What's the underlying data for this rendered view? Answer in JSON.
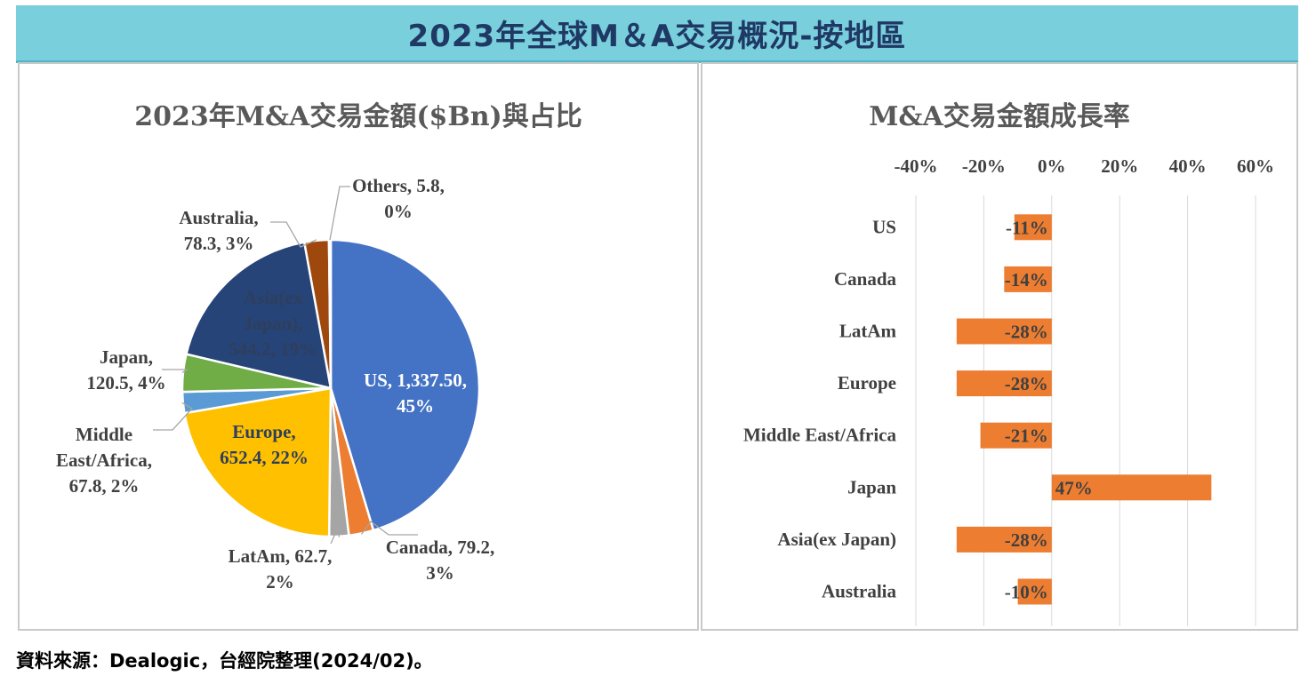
{
  "banner": {
    "title": "2023年全球M＆A交易概況-按地區"
  },
  "source": "資料來源：Dealogic，台經院整理(2024/02)。",
  "colors": {
    "us": "#4472c4",
    "canada": "#ed7d31",
    "latam": "#a5a5a5",
    "europe": "#ffc000",
    "middle_east_africa": "#5b9bd5",
    "japan": "#70ad47",
    "asia_ex_japan": "#264478",
    "australia": "#9e480e",
    "others": "#636363",
    "growth_bar": "#ed7d31"
  },
  "chart_data": [
    {
      "type": "pie",
      "title": "2023年M&A交易金額($Bn)與占比",
      "slices": [
        {
          "key": "us",
          "name": "US",
          "value": 1337.5,
          "value_text": "1,337.50",
          "pct": "45%"
        },
        {
          "key": "canada",
          "name": "Canada",
          "value": 79.2,
          "value_text": "79.2",
          "pct": "3%"
        },
        {
          "key": "latam",
          "name": "LatAm",
          "value": 62.7,
          "value_text": "62.7",
          "pct": "2%"
        },
        {
          "key": "europe",
          "name": "Europe",
          "value": 652.4,
          "value_text": "652.4",
          "pct": "22%"
        },
        {
          "key": "middle_east_africa",
          "name": "Middle East/Africa",
          "value": 67.8,
          "value_text": "67.8",
          "pct": "2%"
        },
        {
          "key": "japan",
          "name": "Japan",
          "value": 120.5,
          "value_text": "120.5",
          "pct": "4%"
        },
        {
          "key": "asia_ex_japan",
          "name": "Asia(ex Japan)",
          "value": 544.2,
          "value_text": "544.2",
          "pct": "19%"
        },
        {
          "key": "australia",
          "name": "Australia",
          "value": 78.3,
          "value_text": "78.3",
          "pct": "3%"
        },
        {
          "key": "others",
          "name": "Others",
          "value": 5.8,
          "value_text": "5.8",
          "pct": "0%"
        }
      ],
      "labels": {
        "us": [
          "US, 1,337.50,",
          "45%"
        ],
        "canada": [
          "Canada, 79.2,",
          "3%"
        ],
        "latam": [
          "LatAm, 62.7,",
          "2%"
        ],
        "europe": [
          "Europe,",
          "652.4, 22%"
        ],
        "middle_east_africa": [
          "Middle",
          "East/Africa,",
          "67.8, 2%"
        ],
        "japan": [
          "Japan,",
          "120.5, 4%"
        ],
        "asia_ex_japan": [
          "Asia(ex",
          "Japan),",
          "544.2, 19%"
        ],
        "australia": [
          "Australia,",
          "78.3, 3%"
        ],
        "others": [
          "Others, 5.8,",
          "0%"
        ]
      }
    },
    {
      "type": "bar",
      "orientation": "horizontal",
      "title": "M&A交易金額成長率",
      "categories": [
        "US",
        "Canada",
        "LatAm",
        "Europe",
        "Middle East/Africa",
        "Japan",
        "Asia(ex Japan)",
        "Australia"
      ],
      "values": [
        -11,
        -14,
        -28,
        -28,
        -21,
        47,
        -28,
        -10
      ],
      "value_labels": [
        "-11%",
        "-14%",
        "-28%",
        "-28%",
        "-21%",
        "47%",
        "-28%",
        "-10%"
      ],
      "xlim": [
        -40,
        60
      ],
      "xticks": [
        -40,
        -20,
        0,
        20,
        40,
        60
      ],
      "xtick_labels": [
        "-40%",
        "-20%",
        "0%",
        "20%",
        "40%",
        "60%"
      ],
      "axis_position": "top",
      "grid": true,
      "legend": "none"
    }
  ]
}
